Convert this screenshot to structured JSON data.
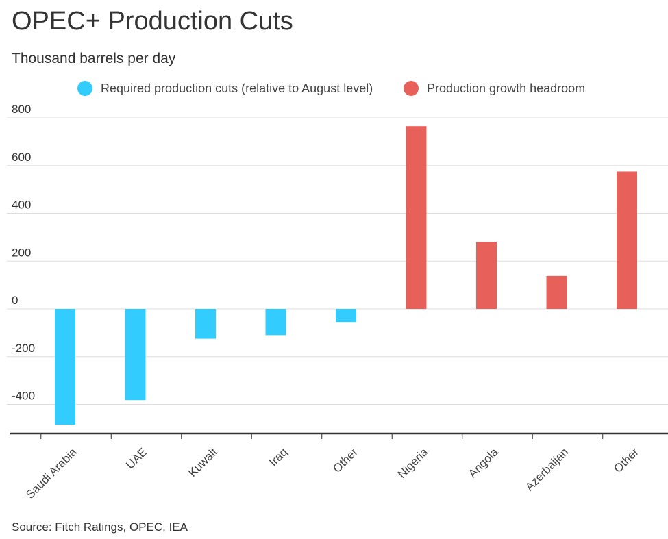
{
  "header": {
    "title": "OPEC+ Production Cuts",
    "subtitle": "Thousand barrels per day"
  },
  "legend": [
    {
      "label": "Required production cuts (relative to August level)",
      "color": "#33ccff"
    },
    {
      "label": "Production growth headroom",
      "color": "#e8605a"
    }
  ],
  "footer": {
    "source": "Source:  Fitch Ratings, OPEC, IEA"
  },
  "chart_data": {
    "type": "bar",
    "categories": [
      "Saudi Arabia",
      "UAE",
      "Kuwait",
      "Iraq",
      "Other",
      "Nigeria",
      "Angola",
      "Azerbaijan",
      "Other"
    ],
    "series": [
      {
        "name": "Required production cuts (relative to August level)",
        "color": "#33ccff",
        "values": [
          -485,
          -382,
          -125,
          -110,
          -55,
          null,
          null,
          null,
          null
        ]
      },
      {
        "name": "Production growth headroom",
        "color": "#e8605a",
        "values": [
          null,
          null,
          null,
          null,
          null,
          765,
          280,
          138,
          575
        ]
      }
    ],
    "yticks": [
      800,
      600,
      400,
      200,
      0,
      -200,
      -400
    ],
    "ylim": [
      -530,
      830
    ],
    "grid": true,
    "legend_position": "top"
  }
}
